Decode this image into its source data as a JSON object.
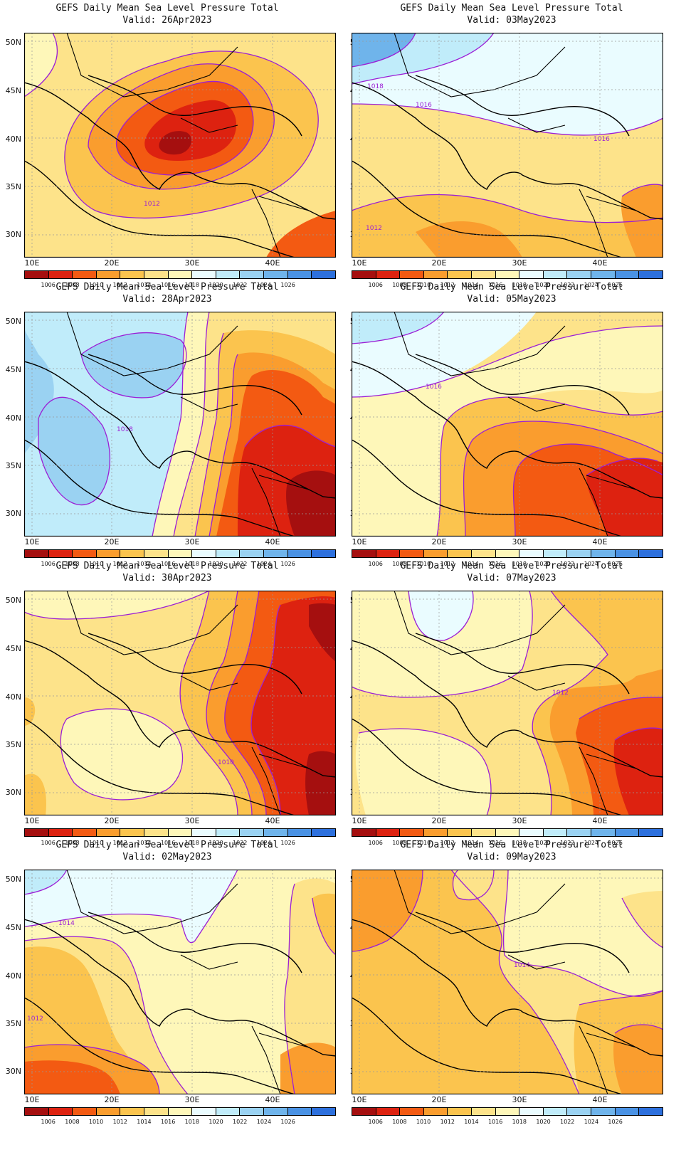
{
  "common": {
    "title": "GEFS Daily Mean Sea Level Pressure Total",
    "lat_labels": [
      "50N",
      "45N",
      "40N",
      "35N",
      "30N"
    ],
    "lon_labels": [
      "10E",
      "20E",
      "30E",
      "40E"
    ],
    "colorbar": {
      "labels": [
        "1006",
        "1008",
        "1010",
        "1012",
        "1014",
        "1016",
        "1018",
        "1020",
        "1022",
        "1024",
        "1026"
      ],
      "colors": [
        "#a50f0f",
        "#dd2210",
        "#f35a12",
        "#fa9d2e",
        "#fbc44e",
        "#fde38a",
        "#fef7b9",
        "#eafcff",
        "#c0ecfa",
        "#9ad2f2",
        "#6fb4eb",
        "#4a92e4",
        "#2d70dd"
      ]
    },
    "contour_color": "#9b1ed6",
    "coastline_color": "#000000",
    "grid_style": "dotted"
  },
  "panels": [
    {
      "valid": "Valid: 26Apr2023",
      "labels": [
        "1012"
      ]
    },
    {
      "valid": "Valid: 03May2023",
      "labels": [
        "1018",
        "1016",
        "1016",
        "1012"
      ]
    },
    {
      "valid": "Valid: 28Apr2023",
      "labels": [
        "1018"
      ]
    },
    {
      "valid": "Valid: 05May2023",
      "labels": [
        "1016"
      ]
    },
    {
      "valid": "Valid: 30Apr2023",
      "labels": [
        "1010"
      ]
    },
    {
      "valid": "Valid: 07May2023",
      "labels": [
        "1012"
      ]
    },
    {
      "valid": "Valid: 02May2023",
      "labels": [
        "1014",
        "1012"
      ]
    },
    {
      "valid": "Valid: 09May2023",
      "labels": [
        "1014"
      ]
    }
  ]
}
